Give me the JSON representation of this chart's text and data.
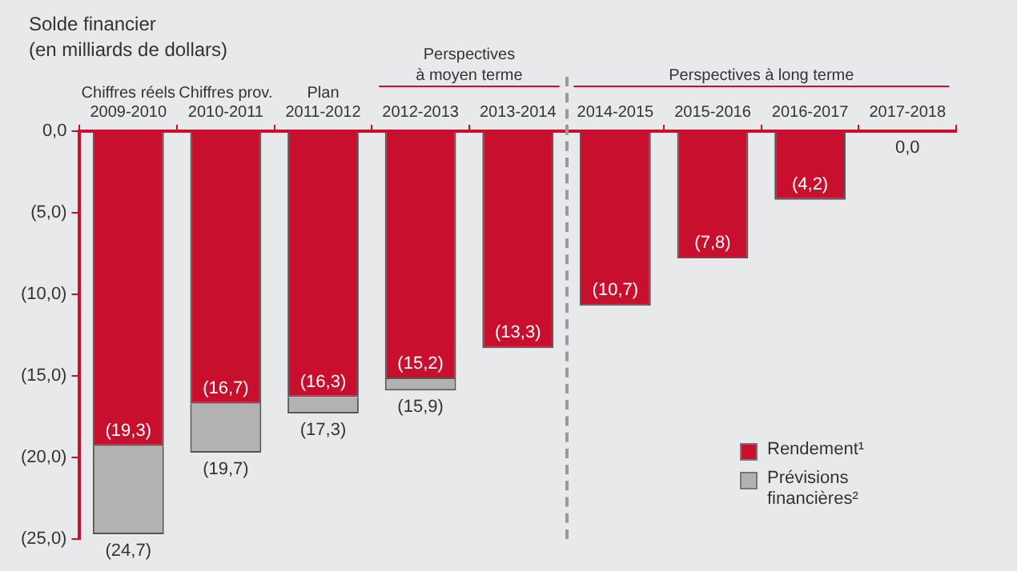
{
  "chart_data": {
    "type": "bar",
    "title": "Solde financier",
    "subtitle": "(en milliards de dollars)",
    "categories": [
      "Chiffres réels\n2009-2010",
      "Chiffres prov.\n2010-2011",
      "Plan\n2011-2012",
      "2012-2013",
      "2013-2014",
      "2014-2015",
      "2015-2016",
      "2016-2017",
      "2017-2018"
    ],
    "stacked": true,
    "series": [
      {
        "name": "Rendement¹",
        "color": "#c8102e",
        "values": [
          -19.3,
          -16.7,
          -16.3,
          -15.2,
          -13.3,
          -10.7,
          -7.8,
          -4.2,
          0
        ],
        "value_labels": [
          "(19,3)",
          "(16,7)",
          "(16,3)",
          "(15,2)",
          "(13,3)",
          "(10,7)",
          "(7,8)",
          "(4,2)",
          "0,0"
        ]
      },
      {
        "name": "Prévisions financières²",
        "color": "#b2b2b2",
        "values": [
          -5.4,
          -3.0,
          -1.0,
          -0.7,
          null,
          null,
          null,
          null,
          null
        ]
      }
    ],
    "totals": [
      "(24,7)",
      "(19,7)",
      "(17,3)",
      "(15,9)",
      null,
      null,
      null,
      null,
      null
    ],
    "ylim": [
      -25,
      0
    ],
    "yticks": [
      {
        "value": 0,
        "label": "0,0"
      },
      {
        "value": -5,
        "label": "(5,0)"
      },
      {
        "value": -10,
        "label": "(10,0)"
      },
      {
        "value": -15,
        "label": "(15,0)"
      },
      {
        "value": -20,
        "label": "(20,0)"
      },
      {
        "value": -25,
        "label": "(25,0)"
      }
    ],
    "annotations": [
      "Perspectives\nà moyen terme",
      "Perspectives à long terme"
    ],
    "grid": false,
    "legend": "bottom right"
  }
}
